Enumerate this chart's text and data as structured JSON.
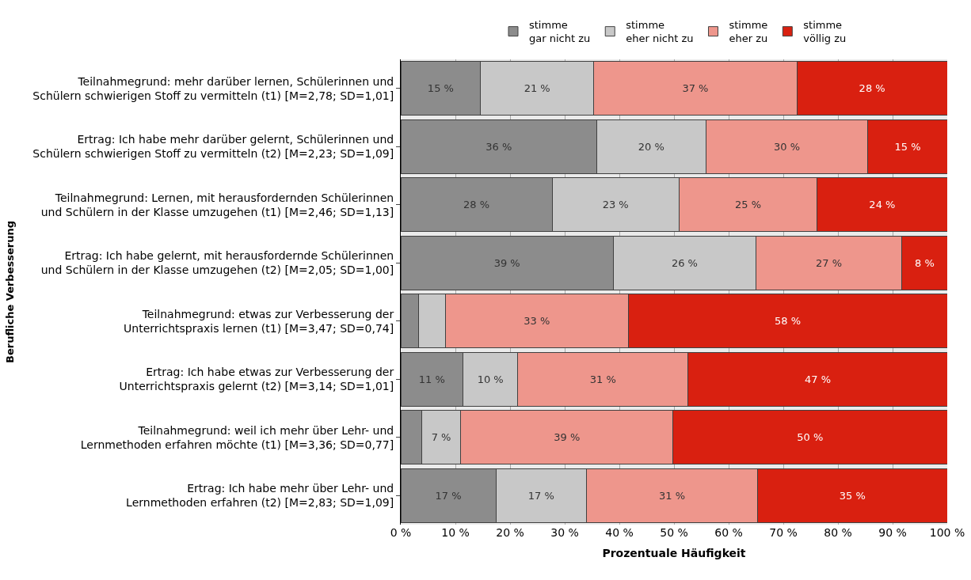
{
  "chart_data": {
    "type": "bar",
    "orientation": "horizontal",
    "stacked": true,
    "categories": [
      "Teilnahmegrund: mehr darüber lernen, Schülerinnen und\nSchülern schwierigen Stoff zu vermitteln (t1) [M=2,78; SD=1,01]",
      "Ertrag: Ich habe mehr darüber gelernt, Schülerinnen und\nSchülern schwierigen Stoff zu vermitteln (t2) [M=2,23; SD=1,09]",
      "Teilnahmegrund: Lernen, mit herausfordernden Schülerinnen\nund Schülern in der Klasse umzugehen (t1) [M=2,46; SD=1,13]",
      "Ertrag: Ich habe gelernt, mit herausfordernde Schülerinnen\nund Schülern in der Klasse umzugehen (t2) [M=2,05; SD=1,00]",
      "Teilnahmegrund: etwas zur Verbesserung der\nUnterrichtspraxis lernen (t1) [M=3,47; SD=0,74]",
      "Ertrag: Ich habe etwas zur Verbesserung der\nUnterrichtspraxis gelernt (t2) [M=3,14; SD=1,01]",
      "Teilnahmegrund: weil ich mehr über Lehr- und\nLernmethoden erfahren möchte (t1) [M=3,36; SD=0,77]",
      "Ertrag: Ich habe mehr über Lehr- und\nLernmethoden erfahren (t2) [M=2,83; SD=1,09]"
    ],
    "series": [
      {
        "name": "stimme\ngar nicht zu",
        "color": "#8c8c8c",
        "values": [
          14.6,
          35.9,
          27.7,
          38.9,
          3.3,
          11.4,
          3.8,
          17.4
        ],
        "value_labels": [
          "15 %",
          "36 %",
          "28 %",
          "39 %",
          null,
          "11 %",
          null,
          "17 %"
        ]
      },
      {
        "name": "stimme\neher nicht zu",
        "color": "#c8c8c8",
        "values": [
          20.7,
          19.9,
          23.2,
          26.1,
          4.9,
          10.0,
          7.2,
          16.6
        ],
        "value_labels": [
          "21 %",
          "20 %",
          "23 %",
          "26 %",
          null,
          "10 %",
          "7 %",
          "17 %"
        ]
      },
      {
        "name": "stimme\neher zu",
        "color": "#ee968c",
        "values": [
          37.2,
          29.7,
          25.3,
          26.7,
          33.4,
          31.2,
          38.8,
          31.3
        ],
        "value_labels": [
          "37 %",
          "30 %",
          "25 %",
          "27 %",
          "33 %",
          "31 %",
          "39 %",
          "31 %"
        ]
      },
      {
        "name": "stimme\nvöllig zu",
        "color": "#d92010",
        "values": [
          27.5,
          14.5,
          23.8,
          8.3,
          58.4,
          47.4,
          50.2,
          34.7
        ],
        "value_labels": [
          "28 %",
          "15 %",
          "24 %",
          "8 %",
          "58 %",
          "47 %",
          "50 %",
          "35 %"
        ]
      }
    ],
    "xlim": [
      0,
      100
    ],
    "xticks": [
      {
        "value": 0,
        "label": "0 %"
      },
      {
        "value": 10,
        "label": "10 %"
      },
      {
        "value": 20,
        "label": "20 %"
      },
      {
        "value": 30,
        "label": "30 %"
      },
      {
        "value": 40,
        "label": "40 %"
      },
      {
        "value": 50,
        "label": "50 %"
      },
      {
        "value": 60,
        "label": "60 %"
      },
      {
        "value": 70,
        "label": "70 %"
      },
      {
        "value": 80,
        "label": "80 %"
      },
      {
        "value": 90,
        "label": "90 %"
      },
      {
        "value": 100,
        "label": "100 %"
      }
    ],
    "xlabel": "Prozentuale Häufigkeit",
    "ylabel": "Berufliche Verbesserung",
    "grid": "x",
    "legend": "top"
  }
}
